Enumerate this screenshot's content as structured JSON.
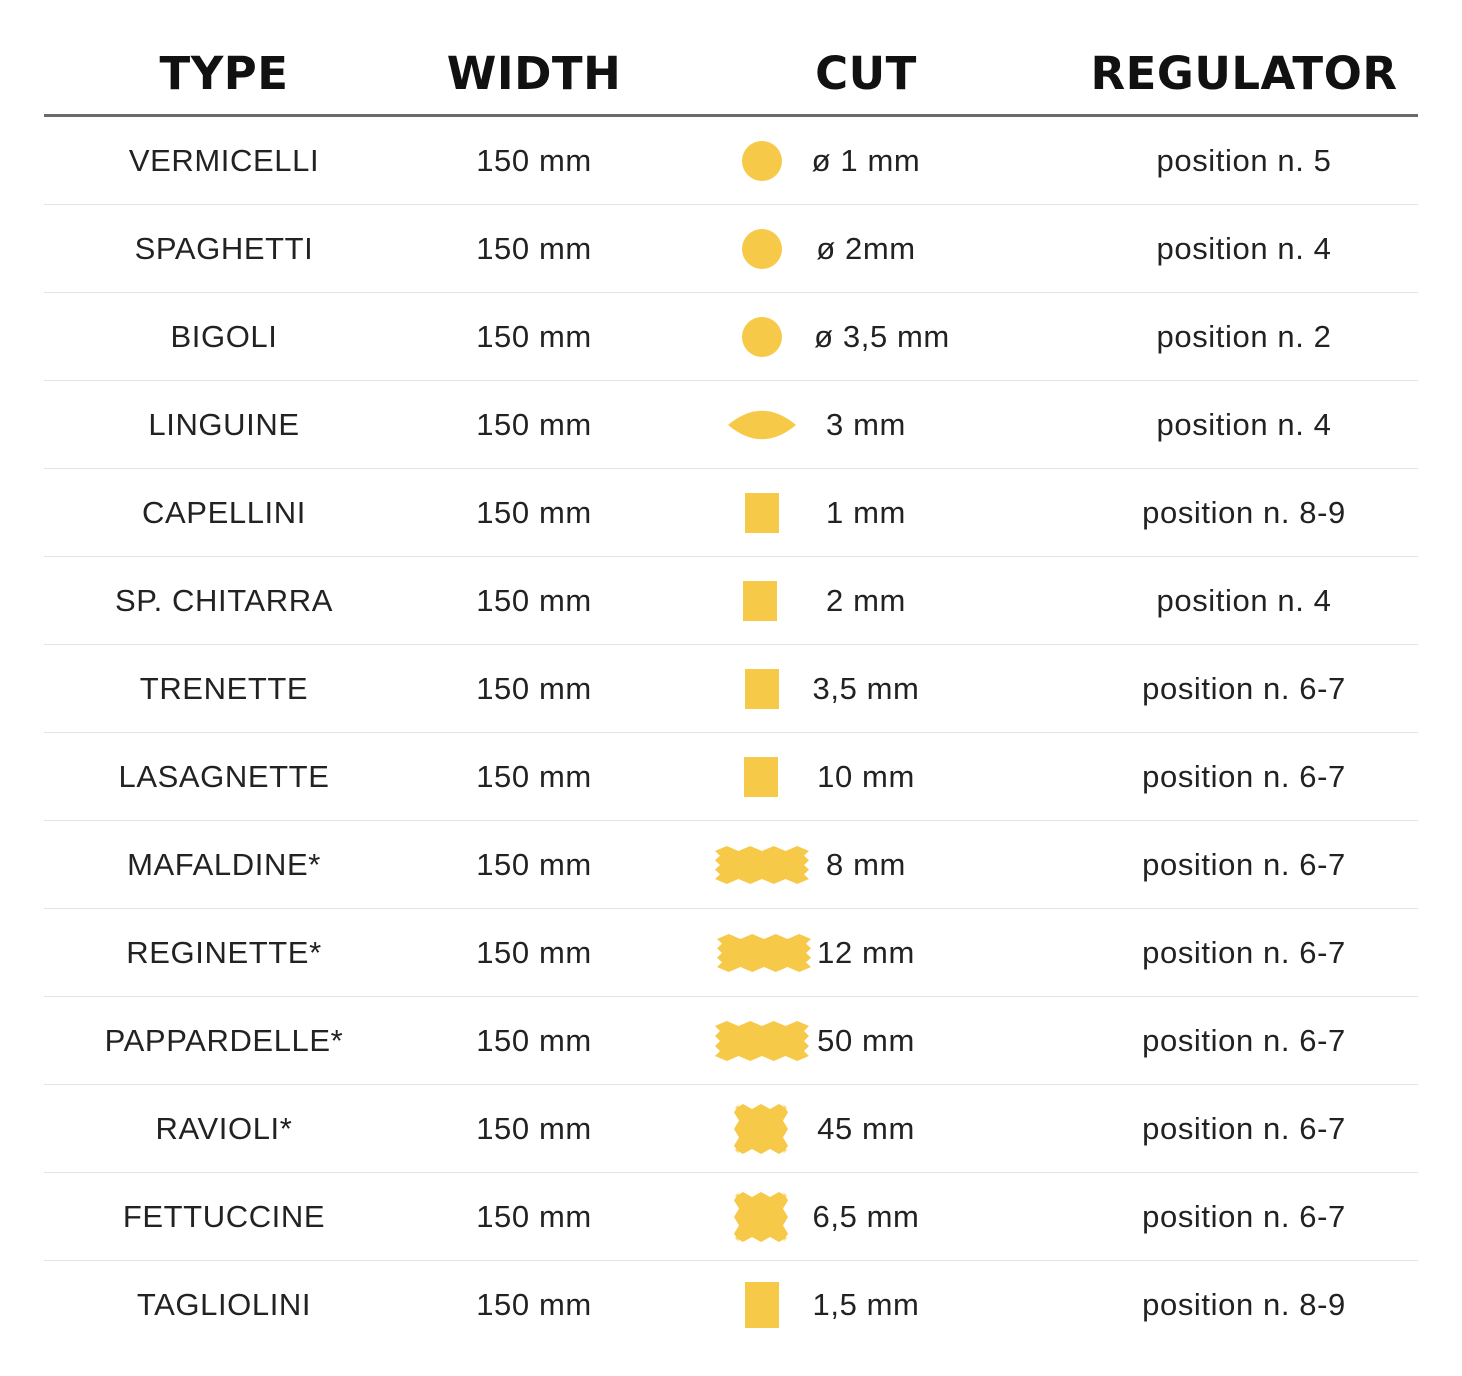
{
  "colors": {
    "pasta": "#f7c948",
    "text": "#222222",
    "header_rule": "#6a6a6a",
    "row_rule": "#e4e4e4"
  },
  "headers": {
    "type": "TYPE",
    "width": "WIDTH",
    "cut": "CUT",
    "regulator": "REGULATOR"
  },
  "rows": [
    {
      "type": "VERMICELLI",
      "width": "150 mm",
      "cut": "ø 1 mm",
      "regulator": "position n. 5",
      "shape": "round"
    },
    {
      "type": "SPAGHETTI",
      "width": "150 mm",
      "cut": "ø 2mm",
      "regulator": "position n. 4",
      "shape": "round"
    },
    {
      "type": "BIGOLI",
      "width": "150 mm",
      "cut": "ø 3,5 mm",
      "regulator": "position n. 2",
      "shape": "round"
    },
    {
      "type": "LINGUINE",
      "width": "150 mm",
      "cut": "3 mm",
      "regulator": "position n. 4",
      "shape": "oval"
    },
    {
      "type": "CAPELLINI",
      "width": "150 mm",
      "cut": "1 mm",
      "regulator": "position n. 8-9",
      "shape": "square"
    },
    {
      "type": "SP. CHITARRA",
      "width": "150 mm",
      "cut": "2 mm",
      "regulator": "position n. 4",
      "shape": "square"
    },
    {
      "type": "TRENETTE",
      "width": "150 mm",
      "cut": "3,5 mm",
      "regulator": "position n. 6-7",
      "shape": "square"
    },
    {
      "type": "LASAGNETTE",
      "width": "150 mm",
      "cut": "10 mm",
      "regulator": "position n. 6-7",
      "shape": "square"
    },
    {
      "type": "MAFALDINE*",
      "width": "150 mm",
      "cut": "8 mm",
      "regulator": "position n. 6-7",
      "shape": "wavy-ribbon"
    },
    {
      "type": "REGINETTE*",
      "width": "150 mm",
      "cut": "12 mm",
      "regulator": "position n. 6-7",
      "shape": "wavy-ribbon"
    },
    {
      "type": "PAPPARDELLE*",
      "width": "150 mm",
      "cut": "50 mm",
      "regulator": "position n. 6-7",
      "shape": "wavy-ribbon"
    },
    {
      "type": "RAVIOLI*",
      "width": "150 mm",
      "cut": "45 mm",
      "regulator": "position n. 6-7",
      "shape": "jagged-square"
    },
    {
      "type": "FETTUCCINE",
      "width": "150 mm",
      "cut": "6,5 mm",
      "regulator": "position n. 6-7",
      "shape": "jagged-square"
    },
    {
      "type": "TAGLIOLINI",
      "width": "150 mm",
      "cut": "1,5 mm",
      "regulator": "position n. 8-9",
      "shape": "square"
    }
  ]
}
